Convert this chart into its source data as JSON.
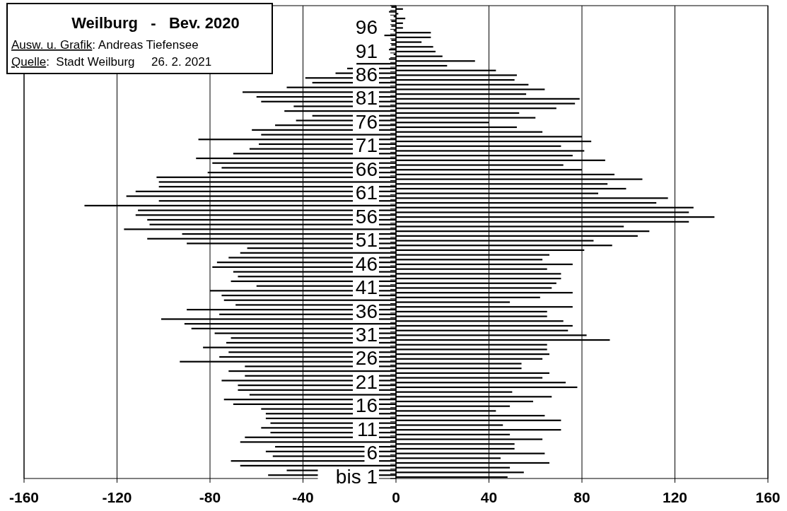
{
  "chart_data": {
    "type": "bar",
    "orientation": "horizontal",
    "title": "Weilburg   -   Bev. 2020",
    "annotations": [
      "Ausw. u. Grafik: Andreas Tiefensee",
      "Quelle:  Stadt Weilburg     26. 2. 2021"
    ],
    "categories": [
      null,
      null,
      null,
      null,
      "96",
      null,
      null,
      null,
      null,
      "91",
      null,
      null,
      null,
      null,
      "86",
      null,
      null,
      null,
      null,
      "81",
      null,
      null,
      null,
      null,
      "76",
      null,
      null,
      null,
      null,
      "71",
      null,
      null,
      null,
      null,
      "66",
      null,
      null,
      null,
      null,
      "61",
      null,
      null,
      null,
      null,
      "56",
      null,
      null,
      null,
      null,
      "51",
      null,
      null,
      null,
      null,
      "46",
      null,
      null,
      null,
      null,
      "41",
      null,
      null,
      null,
      null,
      "36",
      null,
      null,
      null,
      null,
      "31",
      null,
      null,
      null,
      null,
      "26",
      null,
      null,
      null,
      null,
      "21",
      null,
      null,
      null,
      null,
      "16",
      null,
      null,
      null,
      null,
      "11",
      null,
      null,
      null,
      null,
      "6",
      null,
      null,
      null,
      null,
      "bis 1"
    ],
    "series": [
      {
        "color": "#000000",
        "values": [
          -2,
          -3,
          -1,
          -2,
          -2,
          -1,
          -5,
          -2,
          -2,
          -3,
          -1,
          -3,
          -17,
          -21,
          -26,
          -39,
          -36,
          -47,
          -66,
          -60,
          -58,
          -44,
          -48,
          -36,
          -43,
          -52,
          -62,
          -58,
          -85,
          -59,
          -63,
          -70,
          -86,
          -79,
          -75,
          -81,
          -103,
          -102,
          -102,
          -112,
          -116,
          -102,
          -134,
          -111,
          -112,
          -107,
          -106,
          -117,
          -92,
          -107,
          -90,
          -64,
          -67,
          -72,
          -77,
          -79,
          -70,
          -68,
          -71,
          -60,
          -80,
          -75,
          -74,
          -69,
          -90,
          -76,
          -101,
          -91,
          -88,
          -78,
          -71,
          -73,
          -83,
          -72,
          -76,
          -93,
          -65,
          -72,
          -65,
          -75,
          -68,
          -68,
          -63,
          -74,
          -70,
          -58,
          -56,
          -56,
          -54,
          -58,
          -54,
          -65,
          -67,
          -52,
          -56,
          -53,
          -71,
          -67,
          -47,
          -55
        ]
      },
      {
        "color": "#000000",
        "values": [
          3,
          1,
          4,
          3,
          3,
          15,
          15,
          11,
          16,
          17,
          20,
          34,
          22,
          43,
          52,
          51,
          57,
          64,
          56,
          79,
          77,
          69,
          53,
          60,
          40,
          52,
          63,
          80,
          84,
          71,
          81,
          76,
          90,
          72,
          80,
          94,
          106,
          91,
          99,
          87,
          117,
          112,
          128,
          126,
          137,
          126,
          98,
          109,
          104,
          85,
          93,
          81,
          66,
          63,
          76,
          65,
          71,
          71,
          69,
          67,
          76,
          62,
          49,
          76,
          65,
          65,
          72,
          76,
          74,
          82,
          92,
          65,
          65,
          66,
          63,
          54,
          54,
          66,
          63,
          73,
          78,
          50,
          67,
          59,
          49,
          43,
          64,
          71,
          46,
          71,
          49,
          63,
          51,
          51,
          64,
          45,
          66,
          49,
          55,
          48
        ]
      }
    ],
    "xlim": [
      -160,
      160
    ],
    "xticks": [
      -160,
      -120,
      -80,
      -40,
      0,
      40,
      80,
      120,
      160
    ],
    "grid": "x",
    "legend": false
  }
}
